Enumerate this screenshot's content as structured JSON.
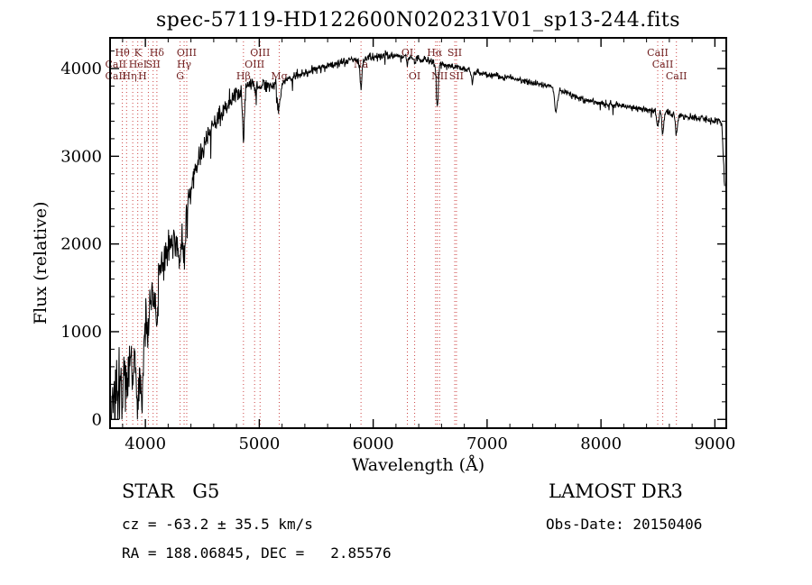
{
  "chart_data": {
    "type": "line",
    "title": "spec-57119-HD122600N020231V01_sp13-244.fits",
    "xlabel": "Wavelength (Å)",
    "ylabel": "Flux (relative)",
    "xlim": [
      3690,
      9100
    ],
    "ylim": [
      -100,
      4350
    ],
    "xticks": [
      4000,
      5000,
      6000,
      7000,
      8000,
      9000
    ],
    "yticks": [
      0,
      1000,
      2000,
      3000,
      4000
    ],
    "grid": false,
    "background": "#ffffff",
    "axis_color": "#000000",
    "series_color": "#000000",
    "continuum": [
      [
        3690,
        40
      ],
      [
        3710,
        150
      ],
      [
        3730,
        320
      ],
      [
        3760,
        450
      ],
      [
        3790,
        520
      ],
      [
        3820,
        560
      ],
      [
        3850,
        620
      ],
      [
        3880,
        680
      ],
      [
        3910,
        730
      ],
      [
        3940,
        780
      ],
      [
        3970,
        820
      ],
      [
        4000,
        1000
      ],
      [
        4030,
        1250
      ],
      [
        4060,
        1450
      ],
      [
        4090,
        1580
      ],
      [
        4120,
        1700
      ],
      [
        4160,
        1820
      ],
      [
        4200,
        1930
      ],
      [
        4240,
        1990
      ],
      [
        4280,
        2060
      ],
      [
        4320,
        2230
      ],
      [
        4360,
        2450
      ],
      [
        4400,
        2650
      ],
      [
        4450,
        2880
      ],
      [
        4500,
        3080
      ],
      [
        4550,
        3230
      ],
      [
        4600,
        3360
      ],
      [
        4650,
        3480
      ],
      [
        4700,
        3570
      ],
      [
        4750,
        3650
      ],
      [
        4800,
        3710
      ],
      [
        4850,
        3760
      ],
      [
        4900,
        3800
      ],
      [
        4950,
        3810
      ],
      [
        5000,
        3820
      ],
      [
        5050,
        3800
      ],
      [
        5100,
        3790
      ],
      [
        5150,
        3820
      ],
      [
        5200,
        3860
      ],
      [
        5300,
        3910
      ],
      [
        5400,
        3950
      ],
      [
        5500,
        3990
      ],
      [
        5600,
        4030
      ],
      [
        5700,
        4070
      ],
      [
        5800,
        4100
      ],
      [
        5900,
        4100
      ],
      [
        6000,
        4130
      ],
      [
        6100,
        4150
      ],
      [
        6200,
        4150
      ],
      [
        6300,
        4130
      ],
      [
        6400,
        4110
      ],
      [
        6500,
        4080
      ],
      [
        6600,
        4060
      ],
      [
        6700,
        4020
      ],
      [
        6800,
        4000
      ],
      [
        6900,
        3970
      ],
      [
        7000,
        3940
      ],
      [
        7100,
        3910
      ],
      [
        7200,
        3890
      ],
      [
        7300,
        3870
      ],
      [
        7400,
        3840
      ],
      [
        7500,
        3810
      ],
      [
        7600,
        3780
      ],
      [
        7700,
        3720
      ],
      [
        7800,
        3660
      ],
      [
        7900,
        3630
      ],
      [
        8000,
        3610
      ],
      [
        8100,
        3590
      ],
      [
        8200,
        3570
      ],
      [
        8300,
        3550
      ],
      [
        8400,
        3530
      ],
      [
        8500,
        3510
      ],
      [
        8600,
        3480
      ],
      [
        8700,
        3460
      ],
      [
        8800,
        3440
      ],
      [
        8900,
        3430
      ],
      [
        9000,
        3400
      ],
      [
        9060,
        3380
      ],
      [
        9086,
        2650
      ]
    ],
    "noise_amplitude": [
      [
        3690,
        300
      ],
      [
        3850,
        290
      ],
      [
        3980,
        260
      ],
      [
        4100,
        190
      ],
      [
        4250,
        150
      ],
      [
        4450,
        125
      ],
      [
        4700,
        95
      ],
      [
        5000,
        60
      ],
      [
        5400,
        48
      ],
      [
        6000,
        42
      ],
      [
        6600,
        38
      ],
      [
        7200,
        35
      ],
      [
        7800,
        32
      ],
      [
        8400,
        30
      ],
      [
        9000,
        40
      ],
      [
        9100,
        60
      ]
    ],
    "absorption_lines": [
      [
        3798,
        300,
        8
      ],
      [
        3835,
        300,
        8
      ],
      [
        3889,
        350,
        8
      ],
      [
        3933,
        600,
        9
      ],
      [
        3968,
        650,
        9
      ],
      [
        4026,
        120,
        7
      ],
      [
        4068,
        120,
        7
      ],
      [
        4101,
        550,
        9
      ],
      [
        4305,
        330,
        13
      ],
      [
        4340,
        500,
        9
      ],
      [
        4363,
        100,
        7
      ],
      [
        4861,
        560,
        9
      ],
      [
        4959,
        60,
        6
      ],
      [
        5007,
        60,
        6
      ],
      [
        5175,
        280,
        13
      ],
      [
        5893,
        300,
        9
      ],
      [
        6300,
        80,
        7
      ],
      [
        6364,
        60,
        7
      ],
      [
        6563,
        480,
        9
      ],
      [
        6870,
        130,
        11
      ],
      [
        7605,
        260,
        13
      ],
      [
        8498,
        180,
        8
      ],
      [
        8542,
        230,
        8
      ],
      [
        8662,
        230,
        8
      ]
    ],
    "line_markers": {
      "color": "#cc4444",
      "label_color": "#6e1d1d",
      "lines": [
        3798,
        3835,
        3889,
        3933,
        3968,
        4026,
        4068,
        4101,
        4305,
        4340,
        4363,
        4861,
        4959,
        5007,
        5175,
        5893,
        6300,
        6364,
        6548,
        6563,
        6583,
        6716,
        6731,
        8498,
        8542,
        8662
      ],
      "labels": [
        {
          "text": "Hθ",
          "row": 1,
          "wavelength": 3798
        },
        {
          "text": "K",
          "row": 1,
          "wavelength": 3933
        },
        {
          "text": "Hδ",
          "row": 1,
          "wavelength": 4101
        },
        {
          "text": "OIII",
          "row": 1,
          "wavelength": 4363
        },
        {
          "text": "OIII",
          "row": 1,
          "wavelength": 5007
        },
        {
          "text": "OI",
          "row": 1,
          "wavelength": 6300
        },
        {
          "text": "Hα",
          "row": 1,
          "wavelength": 6540
        },
        {
          "text": "SII",
          "row": 1,
          "wavelength": 6716
        },
        {
          "text": "CaII",
          "row": 1,
          "wavelength": 8498
        },
        {
          "text": "CaII",
          "row": 2,
          "wavelength": 3740
        },
        {
          "text": "HeI",
          "row": 2,
          "wavelength": 3935
        },
        {
          "text": "SII",
          "row": 2,
          "wavelength": 4068
        },
        {
          "text": "Hγ",
          "row": 2,
          "wavelength": 4340
        },
        {
          "text": "OIII",
          "row": 2,
          "wavelength": 4959
        },
        {
          "text": "Na",
          "row": 2,
          "wavelength": 5893
        },
        {
          "text": "CaII",
          "row": 2,
          "wavelength": 8542
        },
        {
          "text": "CaII",
          "row": 3,
          "wavelength": 3740
        },
        {
          "text": "Hη",
          "row": 3,
          "wavelength": 3860
        },
        {
          "text": "H",
          "row": 3,
          "wavelength": 3975
        },
        {
          "text": "G",
          "row": 3,
          "wavelength": 4305
        },
        {
          "text": "Hβ",
          "row": 3,
          "wavelength": 4861
        },
        {
          "text": "Mg",
          "row": 3,
          "wavelength": 5175
        },
        {
          "text": "OI",
          "row": 3,
          "wavelength": 6364
        },
        {
          "text": "NII",
          "row": 3,
          "wavelength": 6583
        },
        {
          "text": "SII",
          "row": 3,
          "wavelength": 6731
        },
        {
          "text": "CaII",
          "row": 3,
          "wavelength": 8662
        }
      ]
    }
  },
  "footer": {
    "star_class": "STAR   G5",
    "survey": "LAMOST DR3",
    "cz": "cz = -63.2 ± 35.5 km/s",
    "obs_date": "Obs-Date: 20150406",
    "ra_dec": "RA = 188.06845, DEC =   2.85576"
  }
}
